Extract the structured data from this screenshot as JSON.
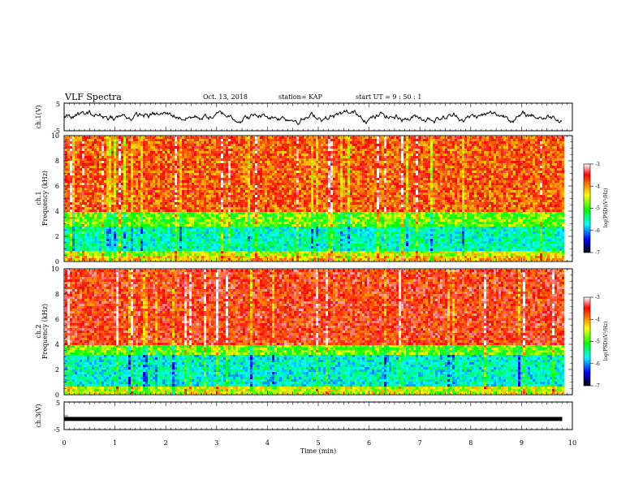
{
  "header": {
    "title": "VLF Spectra",
    "date": "Oct. 13, 2018",
    "station": "station= KAP",
    "start": "start  UT =   9 : 50 : 1"
  },
  "colorbar": {
    "label": "log(PSD)(V²/Hz)",
    "ticks": [
      "-3",
      "-4",
      "-5",
      "-6",
      "-7"
    ],
    "colors": [
      "#ffffff",
      "#ff0000",
      "#ffff00",
      "#00ff00",
      "#00ffff",
      "#0000ff",
      "#000000"
    ]
  },
  "chart_data": [
    {
      "type": "line",
      "panel": "ch.1 waveform",
      "ylabel": "ch.1(V)",
      "ylim": [
        -5,
        5
      ],
      "yticks": [
        "5",
        "-5"
      ],
      "xlim": [
        0,
        10
      ],
      "series": [
        {
          "name": "",
          "description": "noisy waveform fluctuating roughly between -2 and 3 V across 0–9.8 min"
        }
      ]
    },
    {
      "type": "heatmap",
      "panel": "ch.1 spectrogram",
      "ylabel": "ch.1 Frequency (kHz)",
      "ylim": [
        0,
        10
      ],
      "yticks": [
        "0",
        "2",
        "4",
        "6",
        "8",
        "10"
      ],
      "xlim": [
        0,
        9.8
      ],
      "colorscale_range": [
        -7,
        -3
      ],
      "bands": [
        {
          "f_low": 4.0,
          "f_high": 10.0,
          "approx_log_psd": -3.8
        },
        {
          "f_low": 2.8,
          "f_high": 4.0,
          "approx_log_psd": -4.8
        },
        {
          "f_low": 1.0,
          "f_high": 2.8,
          "approx_log_psd": -5.5
        },
        {
          "f_low": 0.5,
          "f_high": 1.0,
          "approx_log_psd": -4.5
        },
        {
          "f_low": 0.0,
          "f_high": 0.5,
          "approx_log_psd": -4.2
        }
      ]
    },
    {
      "type": "heatmap",
      "panel": "ch.2 spectrogram",
      "ylabel": "ch.2 Frequency (kHz)",
      "ylim": [
        0,
        10
      ],
      "yticks": [
        "0",
        "2",
        "4",
        "6",
        "8",
        "10"
      ],
      "xlim": [
        0,
        9.8
      ],
      "colorscale_range": [
        -7,
        -3
      ],
      "bands": [
        {
          "f_low": 4.0,
          "f_high": 10.0,
          "approx_log_psd": -3.6
        },
        {
          "f_low": 3.3,
          "f_high": 4.0,
          "approx_log_psd": -4.8
        },
        {
          "f_low": 0.8,
          "f_high": 3.3,
          "approx_log_psd": -5.6
        },
        {
          "f_low": 0.0,
          "f_high": 0.8,
          "approx_log_psd": -4.5
        }
      ]
    },
    {
      "type": "line",
      "panel": "ch.3 waveform",
      "ylabel": "ch.3(V)",
      "ylim": [
        -5,
        5
      ],
      "yticks": [
        "5",
        "-5"
      ],
      "xlim": [
        0,
        10
      ],
      "series": [
        {
          "name": "",
          "x": [
            0,
            9.8
          ],
          "y": [
            -1.2,
            -1.2
          ]
        }
      ]
    }
  ],
  "xaxis": {
    "label": "Time  (min)",
    "ticks": [
      "0",
      "1",
      "2",
      "3",
      "4",
      "5",
      "6",
      "7",
      "8",
      "9",
      "10"
    ]
  }
}
